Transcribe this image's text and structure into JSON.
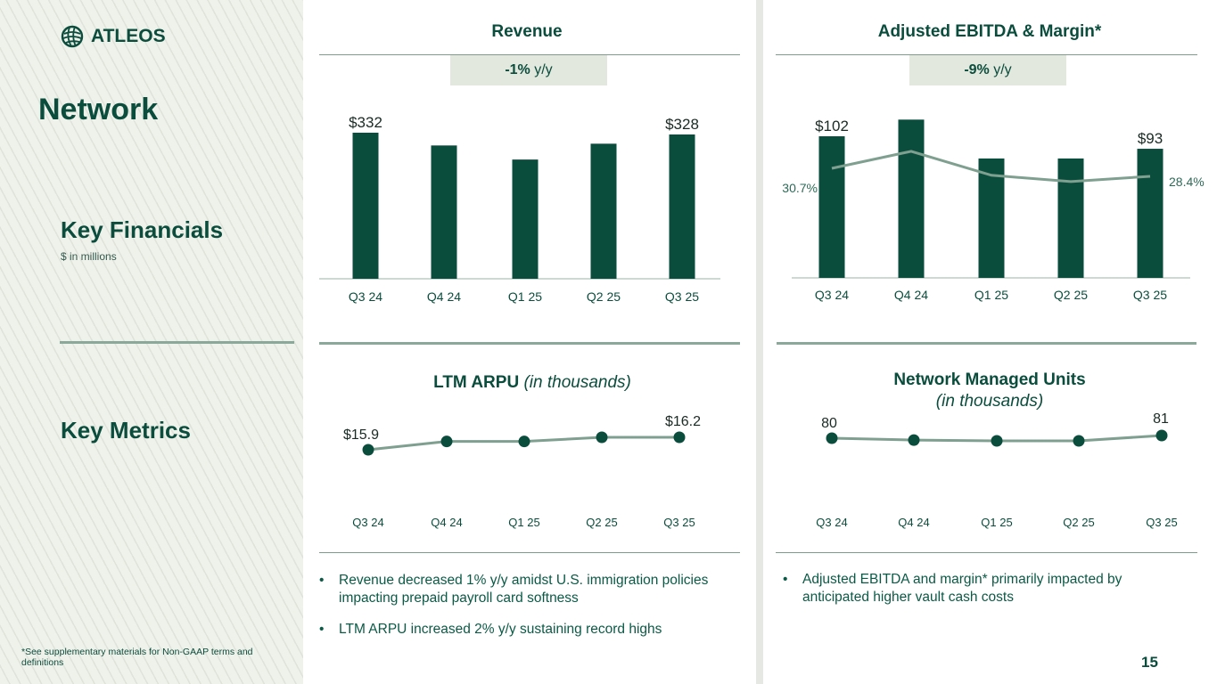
{
  "brand": {
    "name": "ATLEOS"
  },
  "page": {
    "title": "Network",
    "section_financials": "Key Financials",
    "financials_note": "$ in millions",
    "section_metrics": "Key Metrics",
    "footnote": "*See supplementary materials for Non-GAAP terms and definitions",
    "page_number": "15"
  },
  "colors": {
    "bar": "#0b4d3c",
    "line": "#7fa090",
    "text": "#0b4d3c"
  },
  "revenue": {
    "title": "Revenue",
    "badge_value": "-1%",
    "badge_unit": "y/y"
  },
  "ebitda": {
    "title": "Adjusted EBITDA & Margin*",
    "badge_value": "-9%",
    "badge_unit": "y/y"
  },
  "arpu": {
    "title": "LTM ARPU",
    "title_note": "(in thousands)"
  },
  "units": {
    "title": "Network Managed Units",
    "title_note": "(in thousands)"
  },
  "bullets_left": [
    "Revenue decreased 1% y/y amidst U.S. immigration policies impacting prepaid payroll card softness",
    "LTM ARPU increased 2% y/y sustaining record highs"
  ],
  "bullets_right": [
    "Adjusted EBITDA and margin* primarily impacted by anticipated higher vault cash costs"
  ],
  "chart_data": [
    {
      "type": "bar",
      "title": "Revenue",
      "categories": [
        "Q3 24",
        "Q4 24",
        "Q1 25",
        "Q2 25",
        "Q3 25"
      ],
      "values": [
        332,
        303,
        271,
        307,
        328
      ],
      "data_labels": [
        "$332",
        "",
        "",
        "",
        "$328"
      ],
      "grid": false
    },
    {
      "type": "bar",
      "title": "Adjusted EBITDA & Margin*",
      "categories": [
        "Q3 24",
        "Q4 24",
        "Q1 25",
        "Q2 25",
        "Q3 25"
      ],
      "series": [
        {
          "values": [
            102,
            114,
            86,
            86,
            93
          ],
          "data_labels": [
            "$102",
            "",
            "",
            "",
            "$93"
          ]
        },
        {
          "type": "line",
          "values": [
            30.7,
            35.6,
            28.7,
            26.9,
            28.4
          ],
          "data_labels": [
            "30.7%",
            "",
            "",
            "",
            "28.4%"
          ]
        }
      ],
      "grid": false
    },
    {
      "type": "line",
      "title": "LTM ARPU (in thousands)",
      "categories": [
        "Q3 24",
        "Q4 24",
        "Q1 25",
        "Q2 25",
        "Q3 25"
      ],
      "values": [
        15.9,
        16.1,
        16.1,
        16.2,
        16.2
      ],
      "data_labels": [
        "$15.9",
        "",
        "",
        "",
        "$16.2"
      ],
      "grid": false
    },
    {
      "type": "line",
      "title": "Network Managed Units (in thousands)",
      "categories": [
        "Q3 24",
        "Q4 24",
        "Q1 25",
        "Q2 25",
        "Q3 25"
      ],
      "values": [
        80,
        79.3,
        79,
        79,
        81
      ],
      "data_labels": [
        "80",
        "",
        "",
        "",
        "81"
      ],
      "grid": false
    }
  ]
}
